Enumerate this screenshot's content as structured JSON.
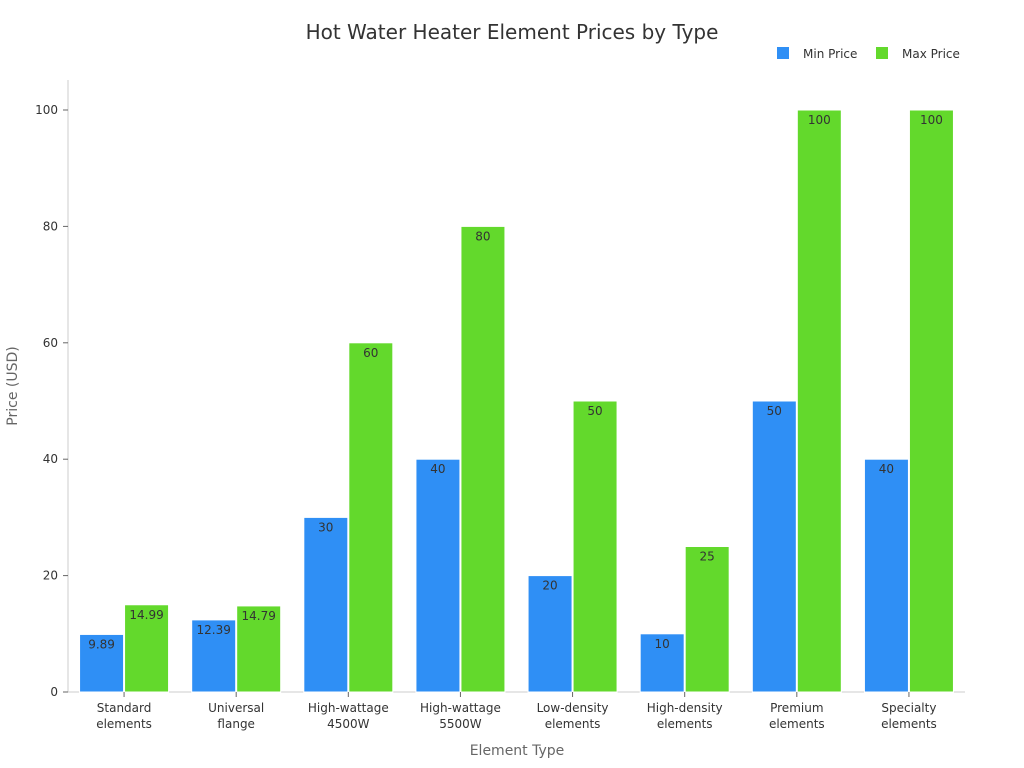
{
  "chart_data": {
    "type": "bar",
    "title": "Hot Water Heater Element Prices by Type",
    "xlabel": "Element Type",
    "ylabel": "Price (USD)",
    "ylim": [
      0,
      100
    ],
    "yticks": [
      0,
      20,
      40,
      60,
      80,
      100
    ],
    "categories": [
      [
        "Standard",
        "elements"
      ],
      [
        "Universal",
        "flange"
      ],
      [
        "High-wattage",
        "4500W"
      ],
      [
        "High-wattage",
        "5500W"
      ],
      [
        "Low-density",
        "elements"
      ],
      [
        "High-density",
        "elements"
      ],
      [
        "Premium",
        "elements"
      ],
      [
        "Specialty",
        "elements"
      ]
    ],
    "series": [
      {
        "name": "Min Price",
        "color": "#2f8ff5",
        "values": [
          9.89,
          12.39,
          30,
          40,
          20,
          10,
          50,
          40
        ],
        "labels": [
          "9.89",
          "12.39",
          "30",
          "40",
          "20",
          "10",
          "50",
          "40"
        ]
      },
      {
        "name": "Max Price",
        "color": "#63d92c",
        "values": [
          14.99,
          14.79,
          60,
          80,
          50,
          25,
          100,
          100
        ],
        "labels": [
          "14.99",
          "14.79",
          "60",
          "80",
          "50",
          "25",
          "100",
          "100"
        ]
      }
    ],
    "legend": {
      "position": "top-right"
    },
    "grid": false
  }
}
